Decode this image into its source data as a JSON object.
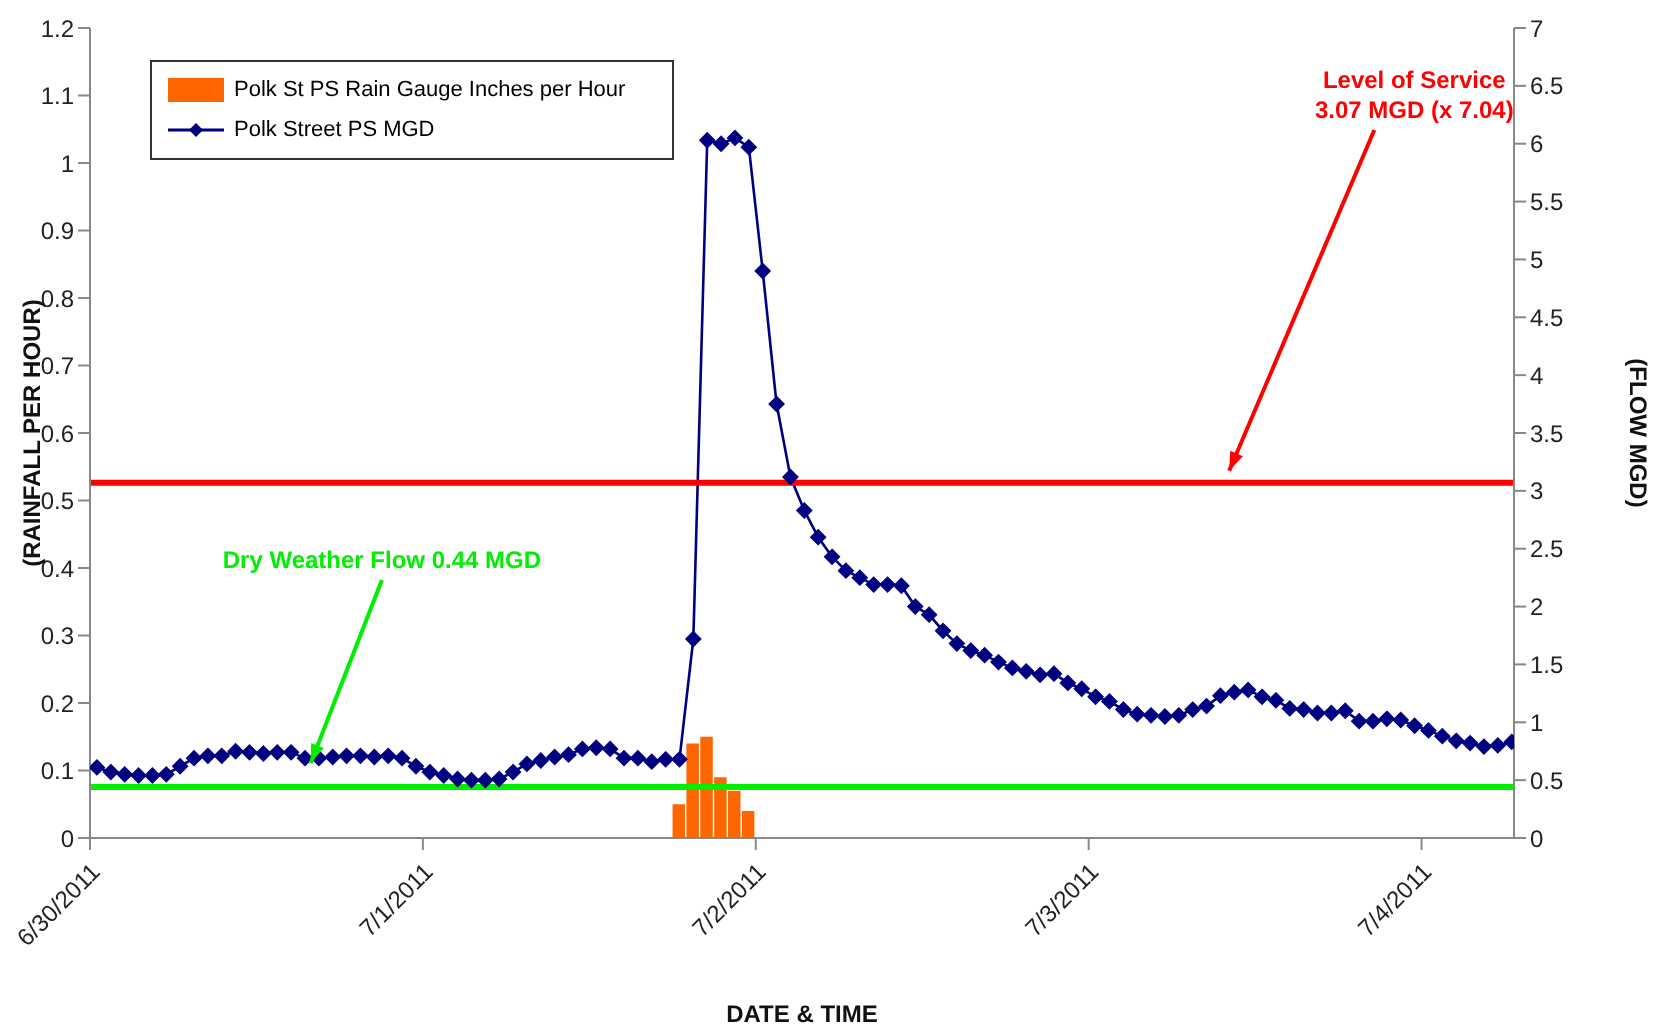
{
  "chart_data": {
    "type": "line",
    "xlabel": "DATE & TIME",
    "ylabel": "(RAINFALL PER HOUR)",
    "y2label": "(FLOW MGD)",
    "xlim": [
      "2011-06-30T00:00",
      "2011-07-04T06:40"
    ],
    "xticks": [
      {
        "value": "2011-06-30",
        "label": "6/30/2011"
      },
      {
        "value": "2011-07-01",
        "label": "7/1/2011"
      },
      {
        "value": "2011-07-02",
        "label": "7/2/2011"
      },
      {
        "value": "2011-07-03",
        "label": "7/3/2011"
      },
      {
        "value": "2011-07-04",
        "label": "7/4/2011"
      }
    ],
    "ylim": [
      0,
      1.2
    ],
    "yticks": [
      0,
      0.1,
      0.2,
      0.3,
      0.4,
      0.5,
      0.6,
      0.7,
      0.8,
      0.9,
      1,
      1.1,
      1.2
    ],
    "y2lim": [
      0,
      7
    ],
    "y2ticks": [
      0,
      0.5,
      1,
      1.5,
      2,
      2.5,
      3,
      3.5,
      4,
      4.5,
      5,
      5.5,
      6,
      6.5,
      7
    ],
    "legend": "top left",
    "grid": false,
    "marker": "diamond",
    "line_style": "solid",
    "series": [
      {
        "name": "Polk St PS Rain Gauge Inches per Hour",
        "type": "bar",
        "color": "#ff6600",
        "x": [
          "2011-07-01T18:30",
          "2011-07-01T19:30",
          "2011-07-01T20:30",
          "2011-07-01T21:30",
          "2011-07-01T22:30",
          "2011-07-01T23:30"
        ],
        "values": [
          0.05,
          0.14,
          0.15,
          0.09,
          0.07,
          0.04
        ]
      },
      {
        "name": "Polk Street PS MGD",
        "axis": "y2",
        "color": "#000080",
        "x": [
          "2011-06-30T00:30",
          "2011-06-30T01:30",
          "2011-06-30T02:30",
          "2011-06-30T03:30",
          "2011-06-30T04:30",
          "2011-06-30T05:30",
          "2011-06-30T06:30",
          "2011-06-30T07:30",
          "2011-06-30T08:30",
          "2011-06-30T09:30",
          "2011-06-30T10:30",
          "2011-06-30T11:30",
          "2011-06-30T12:30",
          "2011-06-30T13:30",
          "2011-06-30T14:30",
          "2011-06-30T15:30",
          "2011-06-30T16:30",
          "2011-06-30T17:30",
          "2011-06-30T18:30",
          "2011-06-30T19:30",
          "2011-06-30T20:30",
          "2011-06-30T21:30",
          "2011-06-30T22:30",
          "2011-06-30T23:30",
          "2011-07-01T00:30",
          "2011-07-01T01:30",
          "2011-07-01T02:30",
          "2011-07-01T03:30",
          "2011-07-01T04:30",
          "2011-07-01T05:30",
          "2011-07-01T06:30",
          "2011-07-01T07:30",
          "2011-07-01T08:30",
          "2011-07-01T09:30",
          "2011-07-01T10:30",
          "2011-07-01T11:30",
          "2011-07-01T12:30",
          "2011-07-01T13:30",
          "2011-07-01T14:30",
          "2011-07-01T15:30",
          "2011-07-01T16:30",
          "2011-07-01T17:30",
          "2011-07-01T18:30",
          "2011-07-01T19:30",
          "2011-07-01T20:30",
          "2011-07-01T21:30",
          "2011-07-01T22:30",
          "2011-07-01T23:30",
          "2011-07-02T00:30",
          "2011-07-02T01:30",
          "2011-07-02T02:30",
          "2011-07-02T03:30",
          "2011-07-02T04:30",
          "2011-07-02T05:30",
          "2011-07-02T06:30",
          "2011-07-02T07:30",
          "2011-07-02T08:30",
          "2011-07-02T09:30",
          "2011-07-02T10:30",
          "2011-07-02T11:30",
          "2011-07-02T12:30",
          "2011-07-02T13:30",
          "2011-07-02T14:30",
          "2011-07-02T15:30",
          "2011-07-02T16:30",
          "2011-07-02T17:30",
          "2011-07-02T18:30",
          "2011-07-02T19:30",
          "2011-07-02T20:30",
          "2011-07-02T21:30",
          "2011-07-02T22:30",
          "2011-07-02T23:30",
          "2011-07-03T00:30",
          "2011-07-03T01:30",
          "2011-07-03T02:30",
          "2011-07-03T03:30",
          "2011-07-03T04:30",
          "2011-07-03T05:30",
          "2011-07-03T06:30",
          "2011-07-03T07:30",
          "2011-07-03T08:30",
          "2011-07-03T09:30",
          "2011-07-03T10:30",
          "2011-07-03T11:30",
          "2011-07-03T12:30",
          "2011-07-03T13:30",
          "2011-07-03T14:30",
          "2011-07-03T15:30",
          "2011-07-03T16:30",
          "2011-07-03T17:30",
          "2011-07-03T18:30",
          "2011-07-03T19:30",
          "2011-07-03T20:30",
          "2011-07-03T21:30",
          "2011-07-03T22:30",
          "2011-07-03T23:30",
          "2011-07-04T00:30",
          "2011-07-04T01:30",
          "2011-07-04T02:30",
          "2011-07-04T03:30",
          "2011-07-04T04:30",
          "2011-07-04T05:30",
          "2011-07-04T06:30"
        ],
        "values": [
          0.61,
          0.57,
          0.55,
          0.54,
          0.54,
          0.55,
          0.62,
          0.69,
          0.71,
          0.71,
          0.75,
          0.74,
          0.73,
          0.74,
          0.74,
          0.69,
          0.69,
          0.7,
          0.71,
          0.71,
          0.7,
          0.71,
          0.69,
          0.62,
          0.57,
          0.54,
          0.51,
          0.5,
          0.5,
          0.51,
          0.57,
          0.64,
          0.67,
          0.7,
          0.72,
          0.77,
          0.78,
          0.77,
          0.69,
          0.69,
          0.66,
          0.68,
          0.68,
          1.72,
          6.03,
          6.0,
          6.05,
          5.97,
          4.9,
          3.75,
          3.12,
          2.83,
          2.6,
          2.43,
          2.31,
          2.25,
          2.19,
          2.19,
          2.18,
          2.0,
          1.93,
          1.79,
          1.68,
          1.62,
          1.58,
          1.52,
          1.47,
          1.44,
          1.41,
          1.42,
          1.34,
          1.29,
          1.22,
          1.18,
          1.11,
          1.07,
          1.06,
          1.05,
          1.06,
          1.11,
          1.14,
          1.23,
          1.26,
          1.28,
          1.22,
          1.19,
          1.12,
          1.11,
          1.08,
          1.08,
          1.1,
          1.01,
          1.01,
          1.03,
          1.02,
          0.97,
          0.93,
          0.88,
          0.84,
          0.82,
          0.79,
          0.8,
          0.83
        ]
      }
    ],
    "ref_lines": [
      {
        "axis": "y2",
        "value": 3.07,
        "label": "Level of Service\n3.07 MGD (x 7.04)",
        "color": "#ff0000"
      },
      {
        "axis": "y2",
        "value": 0.44,
        "label": "Dry Weather Flow 0.44 MGD",
        "color": "#00ee00"
      }
    ]
  }
}
